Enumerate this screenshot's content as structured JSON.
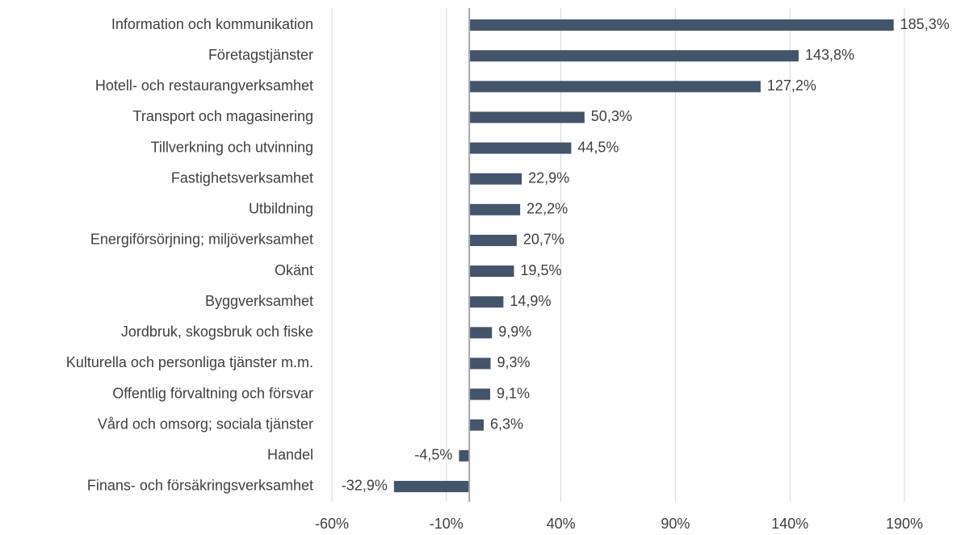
{
  "chart_data": {
    "type": "bar",
    "orientation": "horizontal",
    "categories": [
      "Information och kommunikation",
      "Företagstjänster",
      "Hotell- och restaurangverksamhet",
      "Transport och magasinering",
      "Tillverkning och utvinning",
      "Fastighetsverksamhet",
      "Utbildning",
      "Energiförsörjning; miljöverksamhet",
      "Okänt",
      "Byggverksamhet",
      "Jordbruk, skogsbruk och fiske",
      "Kulturella och personliga tjänster m.m.",
      "Offentlig förvaltning och försvar",
      "Vård och omsorg; sociala tjänster",
      "Handel",
      "Finans- och försäkringsverksamhet"
    ],
    "values": [
      185.3,
      143.8,
      127.2,
      50.3,
      44.5,
      22.9,
      22.2,
      20.7,
      19.5,
      14.9,
      9.9,
      9.3,
      9.1,
      6.3,
      -4.5,
      -32.9
    ],
    "value_labels": [
      "185,3%",
      "143,8%",
      "127,2%",
      "50,3%",
      "44,5%",
      "22,9%",
      "22,2%",
      "20,7%",
      "19,5%",
      "14,9%",
      "9,9%",
      "9,3%",
      "9,1%",
      "6,3%",
      "-4,5%",
      "-32,9%"
    ],
    "color": "#44546a",
    "xlim": [
      -60,
      190
    ],
    "xticks": [
      {
        "value": -60,
        "label": "-60%"
      },
      {
        "value": -10,
        "label": "-10%"
      },
      {
        "value": 40,
        "label": "40%"
      },
      {
        "value": 90,
        "label": "90%"
      },
      {
        "value": 140,
        "label": "140%"
      },
      {
        "value": 190,
        "label": "190%"
      }
    ],
    "grid": true
  }
}
